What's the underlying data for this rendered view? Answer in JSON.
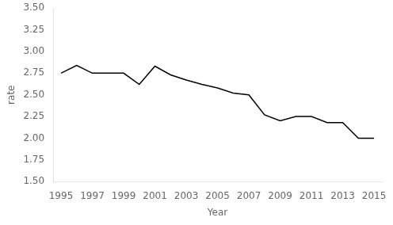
{
  "chart_data": {
    "type": "line",
    "x": [
      1995,
      1996,
      1997,
      1998,
      1999,
      2000,
      2001,
      2002,
      2003,
      2004,
      2005,
      2006,
      2007,
      2008,
      2009,
      2010,
      2011,
      2012,
      2013,
      2014,
      2015
    ],
    "values": [
      2.75,
      2.84,
      2.75,
      2.75,
      2.75,
      2.62,
      2.83,
      2.73,
      2.67,
      2.62,
      2.58,
      2.52,
      2.5,
      2.27,
      2.2,
      2.25,
      2.25,
      2.18,
      2.18,
      2.0,
      2.0
    ],
    "color": "#000000",
    "xlabel": "Year",
    "ylabel": "rate",
    "xlim": [
      1994.5,
      2015.5
    ],
    "xticks": [
      1995,
      1997,
      1999,
      2001,
      2003,
      2005,
      2007,
      2009,
      2011,
      2013,
      2015
    ],
    "ylim": [
      1.5,
      3.5
    ],
    "yticks": [
      {
        "value": 1.5,
        "label": "1.50"
      },
      {
        "value": 1.75,
        "label": "1.75"
      },
      {
        "value": 2.0,
        "label": "2.00"
      },
      {
        "value": 2.25,
        "label": "2.25"
      },
      {
        "value": 2.5,
        "label": "2.50"
      },
      {
        "value": 2.75,
        "label": "2.75"
      },
      {
        "value": 3.0,
        "label": "3.00"
      },
      {
        "value": 3.25,
        "label": "3.25"
      },
      {
        "value": 3.5,
        "label": "3.50"
      }
    ],
    "grid": false
  }
}
